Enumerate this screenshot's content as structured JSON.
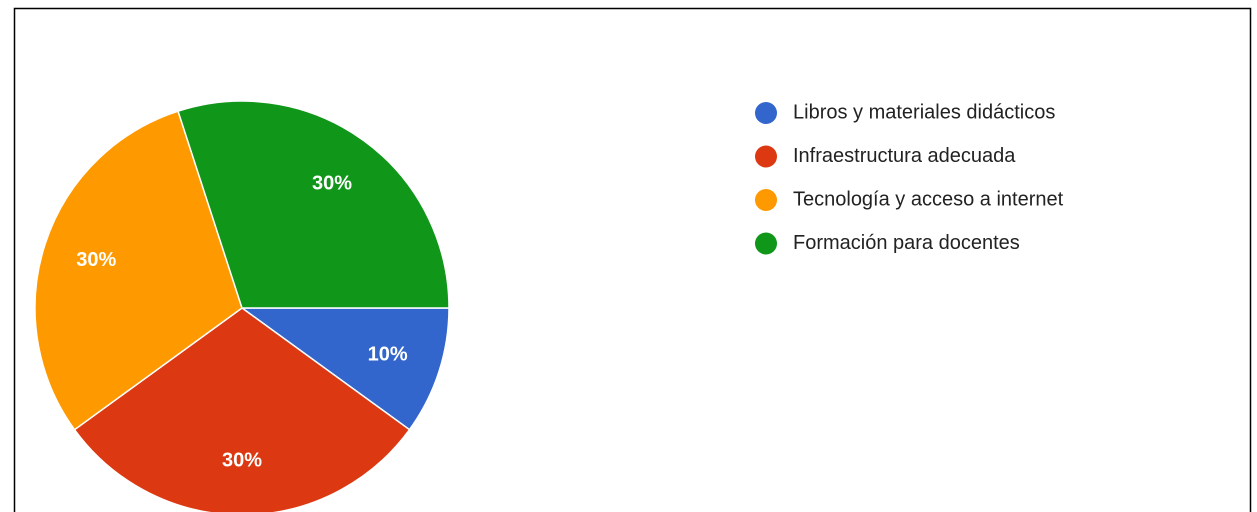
{
  "chart_data": {
    "type": "pie",
    "categories": [
      "Libros y materiales didácticos",
      "Infraestructura adecuada",
      "Tecnología y acceso a internet",
      "Formación para docentes"
    ],
    "values": [
      10,
      30,
      30,
      30
    ],
    "value_labels": [
      "10%",
      "30%",
      "30%",
      "30%"
    ],
    "colors": [
      "#3366cc",
      "#dc3912",
      "#ff9900",
      "#109618"
    ],
    "legend": "right"
  }
}
